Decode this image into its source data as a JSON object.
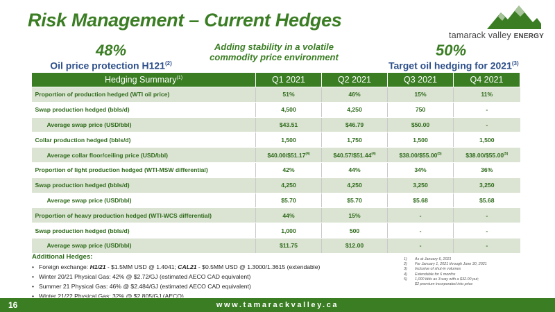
{
  "title": "Risk Management – Current Hedges",
  "logo": {
    "brand": "tamarack valley",
    "brand_suffix": "ENERGY"
  },
  "kpis": {
    "left": {
      "value": "48%",
      "label": "Oil price protection H121",
      "note": "(2)"
    },
    "right": {
      "value": "50%",
      "label": "Target oil hedging for 2021",
      "note": "(3)"
    },
    "center_line1": "Adding stability in a volatile",
    "center_line2": "commodity price environment"
  },
  "table": {
    "header": {
      "label": "Hedging Summary",
      "note": "(1)",
      "cols": [
        "Q1 2021",
        "Q2 2021",
        "Q3 2021",
        "Q4 2021"
      ]
    },
    "rows": [
      {
        "label": "Proportion of production hedged (WTI oil price)",
        "cells": [
          {
            "v": "51%",
            "n": ""
          },
          {
            "v": "46%",
            "n": ""
          },
          {
            "v": "15%",
            "n": ""
          },
          {
            "v": "11%",
            "n": ""
          }
        ]
      },
      {
        "label": "Swap production hedged (bbls/d)",
        "cells": [
          {
            "v": "4,500",
            "n": ""
          },
          {
            "v": "4,250",
            "n": ""
          },
          {
            "v": "750",
            "n": ""
          },
          {
            "v": "-",
            "n": ""
          }
        ]
      },
      {
        "label": "Average swap price (USD/bbl)",
        "cells": [
          {
            "v": "$43.51",
            "n": ""
          },
          {
            "v": "$46.79",
            "n": ""
          },
          {
            "v": "$50.00",
            "n": ""
          },
          {
            "v": "-",
            "n": ""
          }
        ]
      },
      {
        "label": "Collar production hedged (bbls/d)",
        "cells": [
          {
            "v": "1,500",
            "n": ""
          },
          {
            "v": "1,750",
            "n": ""
          },
          {
            "v": "1,500",
            "n": ""
          },
          {
            "v": "1,500",
            "n": ""
          }
        ]
      },
      {
        "label": "Average collar floor/ceiling price (USD/bbl)",
        "cells": [
          {
            "v": "$40.00/$51.17",
            "n": "(4)"
          },
          {
            "v": "$40.57/$51.44",
            "n": "(4)"
          },
          {
            "v": "$38.00/$55.00",
            "n": "(5)"
          },
          {
            "v": "$38.00/$55.00",
            "n": "(5)"
          }
        ]
      },
      {
        "label": "Proportion of light production hedged (WTI-MSW differential)",
        "cells": [
          {
            "v": "42%",
            "n": ""
          },
          {
            "v": "44%",
            "n": ""
          },
          {
            "v": "34%",
            "n": ""
          },
          {
            "v": "36%",
            "n": ""
          }
        ]
      },
      {
        "label": "Swap production hedged (bbls/d)",
        "cells": [
          {
            "v": "4,250",
            "n": ""
          },
          {
            "v": "4,250",
            "n": ""
          },
          {
            "v": "3,250",
            "n": ""
          },
          {
            "v": "3,250",
            "n": ""
          }
        ]
      },
      {
        "label": "Average swap price (USD/bbl)",
        "cells": [
          {
            "v": "$5.70",
            "n": ""
          },
          {
            "v": "$5.70",
            "n": ""
          },
          {
            "v": "$5.68",
            "n": ""
          },
          {
            "v": "$5.68",
            "n": ""
          }
        ]
      },
      {
        "label": "Proportion of heavy production hedged (WTI-WCS differential)",
        "cells": [
          {
            "v": "44%",
            "n": ""
          },
          {
            "v": "15%",
            "n": ""
          },
          {
            "v": "-",
            "n": ""
          },
          {
            "v": "-",
            "n": ""
          }
        ]
      },
      {
        "label": "Swap production hedged (bbls/d)",
        "cells": [
          {
            "v": "1,000",
            "n": ""
          },
          {
            "v": "500",
            "n": ""
          },
          {
            "v": "-",
            "n": ""
          },
          {
            "v": "-",
            "n": ""
          }
        ]
      },
      {
        "label": "Average swap price (USD/bbl)",
        "cells": [
          {
            "v": "$11.75",
            "n": ""
          },
          {
            "v": "$12.00",
            "n": ""
          },
          {
            "v": "-",
            "n": ""
          },
          {
            "v": "-",
            "n": ""
          }
        ]
      }
    ]
  },
  "additional": {
    "title": "Additional Hedges:",
    "fx": {
      "prefix": "Foreign exchange: ",
      "h1": "H1/21",
      "h1_text": " - $1.5MM USD @ 1.4041; ",
      "cal": "CAL21",
      "cal_text": " - $0.5MM USD @ 1.3000/1.3615 (extendable)"
    },
    "items": [
      "Winter 20/21 Physical Gas: 42% @ $2.72/GJ (estimated AECO CAD equivalent)",
      "Summer 21 Physical Gas: 46% @ $2.484/GJ (estimated AECO CAD equivalent)",
      "Winter 21/22 Physical Gas: 32% @ $2.805/GJ (AECO)"
    ]
  },
  "footnotes": [
    {
      "num": "1)",
      "text": "As at January 6, 2021"
    },
    {
      "num": "2)",
      "text": "For January 1, 2021 through June 30, 2021"
    },
    {
      "num": "3)",
      "text": "Inclusive of shut-in volumes"
    },
    {
      "num": "4)",
      "text": "Extendable for 6 months"
    },
    {
      "num": "5)",
      "text": "1,000 bbls as 3-way with a $32.00 put;"
    },
    {
      "num": "",
      "text": "$2 premium incorporated into price"
    }
  ],
  "footer": {
    "page": "16",
    "site": "www.tamarackvalley.ca"
  },
  "colors": {
    "brand_green": "#3a7d23",
    "label_blue": "#2d4f8a",
    "row_shade": "#dbe3d2"
  }
}
